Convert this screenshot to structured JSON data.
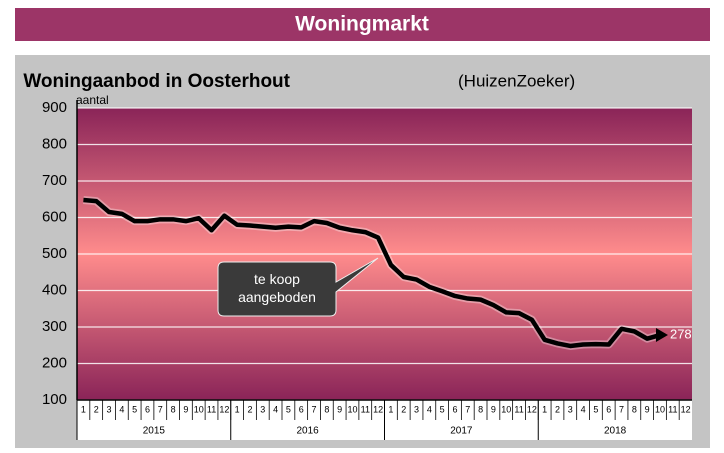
{
  "header": "Woningmarkt",
  "chart_data": {
    "type": "line",
    "title": "Woningaanbod in Oosterhout",
    "subtitle": "(HuizenZoeker)",
    "y_label": "aantal",
    "categories": [
      "1",
      "2",
      "3",
      "4",
      "5",
      "6",
      "7",
      "8",
      "9",
      "10",
      "11",
      "12",
      "1",
      "2",
      "3",
      "4",
      "5",
      "6",
      "7",
      "8",
      "9",
      "10",
      "11",
      "12",
      "1",
      "2",
      "3",
      "4",
      "5",
      "6",
      "7",
      "8",
      "9",
      "10",
      "11",
      "12",
      "1",
      "2",
      "3",
      "4",
      "5",
      "6",
      "7",
      "8",
      "9",
      "10",
      "11",
      "12"
    ],
    "years": [
      "2015",
      "2016",
      "2017",
      "2018"
    ],
    "values": [
      648,
      645,
      615,
      610,
      590,
      590,
      595,
      595,
      590,
      598,
      565,
      605,
      580,
      578,
      575,
      572,
      575,
      573,
      590,
      585,
      572,
      565,
      560,
      545,
      470,
      437,
      430,
      410,
      398,
      385,
      378,
      375,
      360,
      340,
      338,
      320,
      265,
      255,
      248,
      252,
      253,
      252,
      295,
      288,
      268,
      278,
      null,
      null
    ],
    "color": "#000000",
    "annotation": "te koop aangeboden",
    "ylim": [
      100,
      900
    ],
    "yticks": [
      100,
      200,
      300,
      400,
      500,
      600,
      700,
      800,
      900
    ],
    "grid": true
  }
}
